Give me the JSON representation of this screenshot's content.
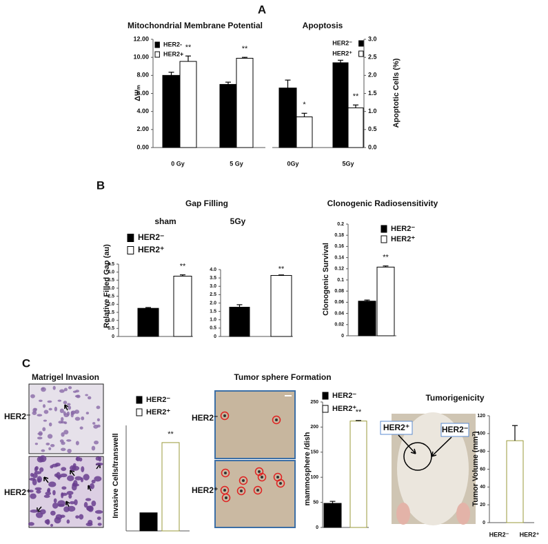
{
  "panel_labels": [
    "A",
    "B",
    "C"
  ],
  "headings": {
    "gap_filling": "Gap Filling",
    "matrigel": "Matrigel Invasion",
    "tumor_sphere": "Tumor sphere Formation",
    "tumorigenicity": "Tumorigenicity"
  },
  "image_labels": {
    "matrigel": [
      "HER2⁻",
      "HER2⁺"
    ],
    "sphere": [
      "HER2⁻",
      "HER2⁺"
    ],
    "mouse": [
      "HER2⁺",
      "HER2⁻"
    ]
  },
  "chart_data": [
    {
      "type": "bar",
      "title": "Mitochondrial Membrane Potential",
      "ylabel": "ΔΨₘ",
      "categories": [
        "0 Gy",
        "5 Gy"
      ],
      "series": [
        {
          "name": "HER2-",
          "color": "#000000",
          "edgecolor": "#000000",
          "values": [
            8.0,
            7.0
          ],
          "errors": [
            0.35,
            0.25
          ]
        },
        {
          "name": "HER2+",
          "color": "#ffffff",
          "edgecolor": "#000000",
          "values": [
            9.55,
            9.9
          ],
          "errors": [
            0.6,
            0.1
          ],
          "significance": [
            "**",
            "**"
          ]
        }
      ],
      "ylim": [
        0,
        12
      ],
      "yticks": [
        {
          "value": 0,
          "label": "0.00"
        },
        {
          "value": 2,
          "label": "2.00"
        },
        {
          "value": 4,
          "label": "4.00"
        },
        {
          "value": 6,
          "label": "6.00"
        },
        {
          "value": 8,
          "label": "8.00"
        },
        {
          "value": 10,
          "label": "10.00"
        },
        {
          "value": 12,
          "label": "12.00"
        }
      ]
    },
    {
      "type": "bar",
      "title": "Apoptosis",
      "ylabel": "Apoptotic Cells (%)",
      "categories": [
        "0Gy",
        "5Gy"
      ],
      "series": [
        {
          "name": "HER2⁻",
          "color": "#000000",
          "edgecolor": "#000000",
          "values": [
            1.65,
            2.35
          ],
          "errors": [
            0.22,
            0.07
          ]
        },
        {
          "name": "HER2⁺",
          "color": "#ffffff",
          "edgecolor": "#000000",
          "values": [
            0.85,
            1.1
          ],
          "errors": [
            0.1,
            0.08
          ],
          "significance": [
            "*",
            "**"
          ]
        }
      ],
      "ylim": [
        0,
        3
      ],
      "yticks": [
        {
          "value": 0,
          "label": "0.0"
        },
        0.5,
        {
          "value": 1,
          "label": "1.0"
        },
        1.5,
        {
          "value": 2,
          "label": "2.0"
        },
        2.5,
        {
          "value": 3,
          "label": "3.0"
        }
      ]
    },
    {
      "type": "bar",
      "title": "sham",
      "ylabel": "Relative Filled Gap (au)",
      "series": [
        {
          "name": "HER2⁻",
          "color": "#000000",
          "edgecolor": "#000000",
          "values": [
            1.75
          ],
          "errors": [
            0.05
          ]
        },
        {
          "name": "HER2⁺",
          "color": "#ffffff",
          "edgecolor": "#000000",
          "values": [
            3.75
          ],
          "errors": [
            0.08
          ],
          "significance": [
            "**"
          ]
        }
      ],
      "ylim": [
        0,
        4.5
      ],
      "yticks": [
        0,
        0.5,
        {
          "value": 1,
          "label": "1.0"
        },
        1.5,
        {
          "value": 2,
          "label": "2.0"
        },
        2.5,
        {
          "value": 3,
          "label": "3.0"
        },
        3.5,
        {
          "value": 4,
          "label": "4.0"
        },
        4.5
      ]
    },
    {
      "type": "bar",
      "title": "5Gy",
      "series": [
        {
          "color": "#000000",
          "edgecolor": "#000000",
          "values": [
            1.75
          ],
          "errors": [
            0.15
          ]
        },
        {
          "color": "#ffffff",
          "edgecolor": "#000000",
          "values": [
            3.65
          ],
          "errors": [
            0.03
          ],
          "significance": [
            "**"
          ]
        }
      ],
      "ylim": [
        0,
        4
      ],
      "yticks": [
        0,
        0.5,
        {
          "value": 1,
          "label": "1.0"
        },
        1.5,
        {
          "value": 2,
          "label": "2.0"
        },
        2.5,
        {
          "value": 3,
          "label": "3.0"
        },
        3.5,
        {
          "value": 4,
          "label": "4.0"
        }
      ]
    },
    {
      "type": "bar",
      "title": "Clonogenic Radiosensitivity",
      "ylabel": "Clonogenic  Survival",
      "series": [
        {
          "name": "HER2⁻",
          "color": "#000000",
          "edgecolor": "#000000",
          "values": [
            0.062
          ],
          "errors": [
            0.002
          ]
        },
        {
          "name": "HER2⁺",
          "color": "#ffffff",
          "edgecolor": "#000000",
          "values": [
            0.123
          ],
          "errors": [
            0.002
          ],
          "significance": [
            "**"
          ]
        }
      ],
      "ylim": [
        0,
        0.2
      ],
      "yticks": [
        0,
        0.02,
        0.04,
        0.06,
        0.08,
        0.1,
        0.12,
        0.14,
        0.16,
        0.18,
        0.2
      ]
    },
    {
      "type": "bar",
      "ylabel": "Invasive Cells/transwell",
      "series": [
        {
          "name": "HER2⁻",
          "color": "#000000",
          "edgecolor": "#000000",
          "values": [
            60
          ]
        },
        {
          "name": "HER2⁺",
          "color": "#ffffff",
          "edgecolor": "#9a9a3a",
          "values": [
            293
          ],
          "significance": [
            "**"
          ]
        }
      ],
      "ylim": [
        0,
        350
      ]
    },
    {
      "type": "bar",
      "ylabel": "mammosphere /dish",
      "series": [
        {
          "name": "HER2⁻",
          "color": "#000000",
          "edgecolor": "#000000",
          "values": [
            48
          ],
          "errors": [
            4
          ]
        },
        {
          "name": "HER2⁺",
          "color": "#ffffff",
          "edgecolor": "#9a9a3a",
          "values": [
            212
          ],
          "errors": [
            1
          ],
          "significance": [
            "**"
          ]
        }
      ],
      "ylim": [
        0,
        250
      ],
      "yticks": [
        0,
        50,
        100,
        150,
        200,
        250
      ]
    },
    {
      "type": "bar",
      "ylabel": "Tumor Volume (mm³)",
      "categories": [
        "HER2⁻",
        "HER2⁺"
      ],
      "series": [
        {
          "color": "#ffffff",
          "edgecolor": "#9a9a3a",
          "values": [
            0,
            92
          ],
          "errors": [
            0,
            17
          ]
        }
      ],
      "ylim": [
        0,
        120
      ],
      "yticks": [
        0,
        20,
        40,
        60,
        80,
        100,
        120
      ]
    }
  ]
}
